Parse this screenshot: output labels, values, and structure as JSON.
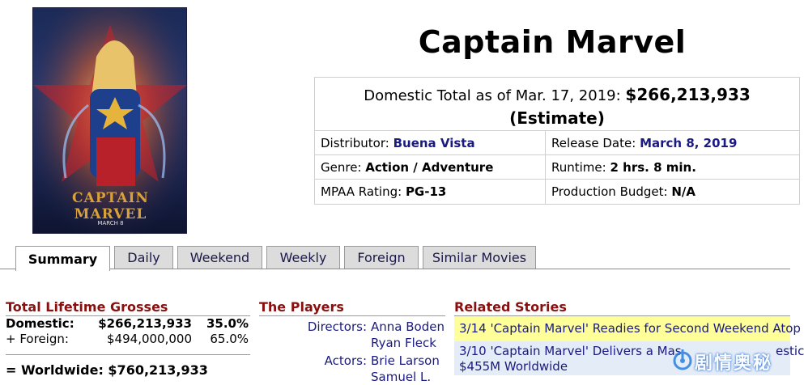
{
  "movie": {
    "title": "Captain Marvel",
    "poster": {
      "top_text": "CAPTAIN MARVEL",
      "release": "MARCH 8"
    }
  },
  "info": {
    "total_label": "Domestic Total as of Mar. 17, 2019:",
    "total_amount": "$266,213,933",
    "total_note": "(Estimate)",
    "distributor_label": "Distributor:",
    "distributor": "Buena Vista",
    "release_label": "Release Date:",
    "release": "March 8, 2019",
    "genre_label": "Genre:",
    "genre": "Action / Adventure",
    "runtime_label": "Runtime:",
    "runtime": "2 hrs. 8 min.",
    "mpaa_label": "MPAA Rating:",
    "mpaa": "PG-13",
    "budget_label": "Production Budget:",
    "budget": "N/A"
  },
  "tabs": [
    {
      "label": "Summary",
      "active": true
    },
    {
      "label": "Daily"
    },
    {
      "label": "Weekend"
    },
    {
      "label": "Weekly"
    },
    {
      "label": "Foreign"
    },
    {
      "label": "Similar Movies"
    }
  ],
  "grosses": {
    "heading": "Total Lifetime Grosses",
    "domestic_label": "Domestic:",
    "domestic_amount": "$266,213,933",
    "domestic_pct": "35.0%",
    "foreign_label": "+ Foreign:",
    "foreign_amount": "$494,000,000",
    "foreign_pct": "65.0%",
    "worldwide_label": "= Worldwide:",
    "worldwide_amount": "$760,213,933"
  },
  "players": {
    "heading": "The Players",
    "directors_label": "Directors:",
    "directors": [
      "Anna Boden",
      "Ryan Fleck"
    ],
    "actors_label": "Actors:",
    "actors": [
      "Brie Larson",
      "Samuel L."
    ]
  },
  "stories": {
    "heading": "Related Stories",
    "items": [
      "3/14 'Captain Marvel' Readies for Second Weekend Atop",
      "3/10 'Captain Marvel' Delivers a Mas",
      "$455M Worldwide"
    ],
    "partial_suffix": "estic"
  },
  "watermark": "剧情奥秘",
  "colors": {
    "heading": "#8a1010",
    "link": "#1a1a80",
    "highlight": "#ffff99",
    "story_bg": "#e4ecf7"
  }
}
